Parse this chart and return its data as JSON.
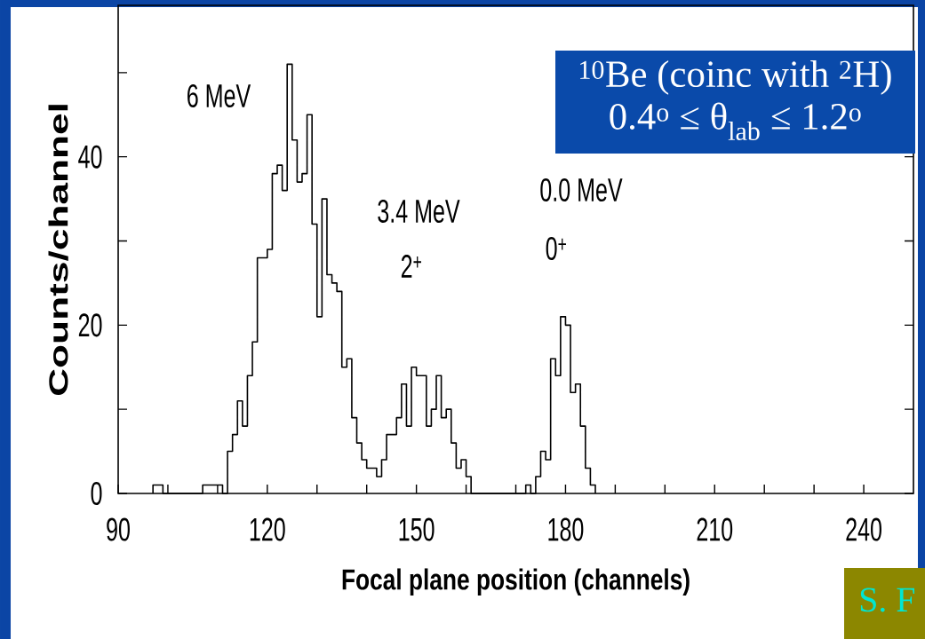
{
  "chart_data": {
    "type": "histogram",
    "title": "$^{10}$Be (coinc with $^{2}$H)",
    "subtitle": "0.4$^{o}$ ≤ θ$_{lab}$ ≤ 1.2$^{o}$",
    "xlabel": "Focal plane position (channels)",
    "ylabel": "Counts/channel",
    "bins": [
      97,
      98,
      99,
      100,
      101,
      102,
      103,
      104,
      105,
      106,
      107,
      108,
      109,
      110,
      111,
      112,
      113,
      114,
      115,
      116,
      117,
      118,
      119,
      120,
      121,
      122,
      123,
      124,
      125,
      126,
      127,
      128,
      129,
      130,
      131,
      132,
      133,
      134,
      135,
      136,
      137,
      138,
      139,
      140,
      141,
      142,
      143,
      144,
      145,
      146,
      147,
      148,
      149,
      150,
      151,
      152,
      153,
      154,
      155,
      156,
      157,
      158,
      159,
      160,
      161,
      162,
      163,
      164,
      165,
      166,
      167,
      168,
      169,
      170,
      171,
      172,
      173,
      174,
      175,
      176,
      177,
      178,
      179,
      180,
      181,
      182,
      183,
      184,
      185,
      186
    ],
    "values": [
      1,
      1,
      0,
      0,
      0,
      0,
      0,
      0,
      0,
      0,
      1,
      1,
      1,
      1,
      0,
      5,
      7,
      11,
      8,
      14,
      18,
      28,
      28,
      29,
      38,
      39,
      36,
      51,
      42,
      37,
      38,
      45,
      32,
      21,
      35,
      26,
      25,
      24,
      15,
      16,
      9,
      6,
      4,
      3,
      3,
      2,
      4,
      7,
      7,
      9,
      13,
      8,
      15,
      14,
      14,
      8,
      10,
      14,
      9,
      10,
      6,
      3,
      4,
      2,
      0,
      0,
      0,
      0,
      0,
      0,
      0,
      0,
      0,
      0,
      0,
      1,
      0,
      2,
      5,
      4,
      16,
      14,
      21,
      20,
      12,
      13,
      8,
      3,
      1
    ],
    "color": "#000000",
    "xlim": [
      90,
      250
    ],
    "ylim": [
      0,
      58
    ],
    "xticks": [
      90,
      {
        "value": 100,
        "label": null
      },
      {
        "value": 110,
        "label": null
      },
      120,
      {
        "value": 130,
        "label": null
      },
      {
        "value": 140,
        "label": null
      },
      150,
      {
        "value": 160,
        "label": null
      },
      {
        "value": 170,
        "label": null
      },
      180,
      {
        "value": 190,
        "label": null
      },
      {
        "value": 200,
        "label": null
      },
      210,
      {
        "value": 220,
        "label": null
      },
      {
        "value": 230,
        "label": null
      },
      240
    ],
    "yticks": [
      0,
      {
        "value": 10,
        "label": null
      },
      20,
      {
        "value": 30,
        "label": null
      },
      40,
      {
        "value": 50,
        "label": null
      }
    ],
    "annotations": [
      "6 MeV",
      "3.4 MeV",
      "2$^{+}$",
      "0.0 MeV",
      "0$^{+}$",
      "S. F"
    ]
  }
}
